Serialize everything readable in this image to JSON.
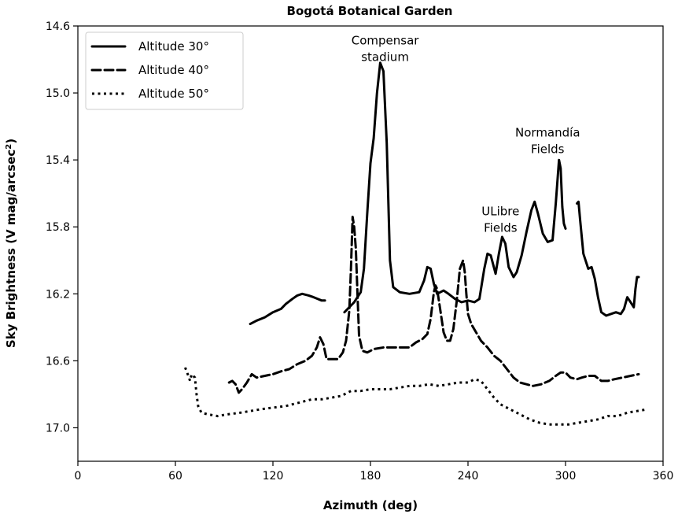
{
  "chart_data": {
    "type": "line",
    "title": "Bogotá Botanical Garden",
    "xlabel": "Azimuth (deg)",
    "ylabel_main": "Sky Brightness (V mag/arcsec",
    "ylabel_sup": "2",
    "ylabel_close": ")",
    "xlim": [
      0,
      360
    ],
    "ylim": [
      17.2,
      14.6
    ],
    "y_inverted": true,
    "x_ticks": [
      0,
      60,
      120,
      180,
      240,
      300,
      360
    ],
    "x_tick_labels": [
      "0",
      "60",
      "120",
      "180",
      "240",
      "300",
      "360"
    ],
    "y_ticks": [
      14.6,
      15.0,
      15.4,
      15.8,
      16.2,
      16.6,
      17.0
    ],
    "y_tick_labels": [
      "14.6",
      "15.0",
      "15.4",
      "15.8",
      "16.2",
      "16.6",
      "17.0"
    ],
    "grid": false,
    "legend": {
      "position": "top-left",
      "entries": [
        {
          "label": "Altitude 30°",
          "style": "solid"
        },
        {
          "label": "Altitude 40°",
          "style": "dashed"
        },
        {
          "label": "Altitude 50°",
          "style": "dotted"
        }
      ]
    },
    "annotations": [
      {
        "lines": [
          "Compensar",
          "stadium"
        ],
        "x": 189,
        "y": 14.71
      },
      {
        "lines": [
          "Normandía",
          "Fields"
        ],
        "x": 289,
        "y": 15.26
      },
      {
        "lines": [
          "ULibre",
          "Fields"
        ],
        "x": 260,
        "y": 15.73
      }
    ],
    "series": [
      {
        "name": "Altitude 30°",
        "style": "solid",
        "segments": [
          [
            [
              106,
              16.38
            ],
            [
              110,
              16.36
            ],
            [
              115,
              16.34
            ],
            [
              120,
              16.31
            ],
            [
              125,
              16.29
            ],
            [
              128,
              16.26
            ],
            [
              132,
              16.23
            ],
            [
              135,
              16.21
            ],
            [
              138,
              16.2
            ],
            [
              142,
              16.21
            ],
            [
              145,
              16.22
            ],
            [
              150,
              16.24
            ],
            [
              152,
              16.24
            ]
          ],
          [
            [
              164,
              16.31
            ],
            [
              167,
              16.28
            ],
            [
              170,
              16.25
            ],
            [
              174,
              16.19
            ],
            [
              176,
              16.05
            ],
            [
              178,
              15.72
            ],
            [
              180,
              15.42
            ],
            [
              182,
              15.27
            ],
            [
              184,
              15.0
            ],
            [
              186,
              14.82
            ],
            [
              188,
              14.87
            ],
            [
              190,
              15.3
            ],
            [
              192,
              16.0
            ],
            [
              194,
              16.16
            ],
            [
              198,
              16.19
            ],
            [
              204,
              16.2
            ],
            [
              210,
              16.19
            ],
            [
              213,
              16.12
            ],
            [
              215,
              16.04
            ],
            [
              217,
              16.05
            ],
            [
              219,
              16.14
            ],
            [
              221,
              16.2
            ],
            [
              223,
              16.19
            ],
            [
              225,
              16.18
            ],
            [
              228,
              16.2
            ],
            [
              232,
              16.23
            ],
            [
              236,
              16.25
            ],
            [
              240,
              16.24
            ],
            [
              244,
              16.25
            ],
            [
              247,
              16.23
            ],
            [
              250,
              16.05
            ],
            [
              252,
              15.96
            ],
            [
              254,
              15.97
            ],
            [
              257,
              16.08
            ],
            [
              259,
              15.96
            ],
            [
              261,
              15.86
            ],
            [
              263,
              15.9
            ],
            [
              265,
              16.04
            ],
            [
              268,
              16.1
            ],
            [
              270,
              16.07
            ],
            [
              273,
              15.97
            ],
            [
              276,
              15.83
            ],
            [
              279,
              15.7
            ],
            [
              281,
              15.65
            ],
            [
              283,
              15.72
            ],
            [
              286,
              15.84
            ],
            [
              289,
              15.89
            ],
            [
              292,
              15.88
            ],
            [
              294,
              15.66
            ],
            [
              296,
              15.4
            ],
            [
              297,
              15.45
            ],
            [
              298,
              15.68
            ],
            [
              299,
              15.78
            ],
            [
              300,
              15.81
            ]
          ],
          [
            [
              307,
              15.66
            ],
            [
              308,
              15.65
            ],
            [
              309,
              15.76
            ],
            [
              311,
              15.96
            ],
            [
              314,
              16.05
            ],
            [
              316,
              16.04
            ],
            [
              318,
              16.11
            ],
            [
              320,
              16.22
            ],
            [
              322,
              16.31
            ],
            [
              325,
              16.33
            ],
            [
              328,
              16.32
            ],
            [
              331,
              16.31
            ],
            [
              334,
              16.32
            ],
            [
              336,
              16.29
            ],
            [
              338,
              16.22
            ],
            [
              340,
              16.25
            ],
            [
              342,
              16.28
            ],
            [
              343,
              16.17
            ],
            [
              344,
              16.1
            ],
            [
              345,
              16.1
            ]
          ]
        ]
      },
      {
        "name": "Altitude 40°",
        "style": "dashed",
        "segments": [
          [
            [
              93,
              16.73
            ],
            [
              95,
              16.72
            ],
            [
              97,
              16.74
            ],
            [
              99,
              16.79
            ],
            [
              101,
              16.77
            ],
            [
              104,
              16.73
            ],
            [
              107,
              16.68
            ],
            [
              110,
              16.7
            ],
            [
              115,
              16.69
            ],
            [
              120,
              16.68
            ],
            [
              126,
              16.66
            ],
            [
              130,
              16.65
            ],
            [
              135,
              16.62
            ],
            [
              140,
              16.6
            ],
            [
              144,
              16.57
            ],
            [
              147,
              16.52
            ],
            [
              149,
              16.46
            ],
            [
              151,
              16.5
            ],
            [
              153,
              16.59
            ],
            [
              156,
              16.59
            ],
            [
              160,
              16.59
            ],
            [
              163,
              16.55
            ],
            [
              165,
              16.48
            ],
            [
              167,
              16.3
            ],
            [
              168,
              16.05
            ],
            [
              169,
              15.74
            ],
            [
              170,
              15.8
            ],
            [
              171,
              15.93
            ],
            [
              172,
              16.2
            ],
            [
              173,
              16.45
            ],
            [
              175,
              16.54
            ],
            [
              178,
              16.55
            ],
            [
              182,
              16.53
            ],
            [
              188,
              16.52
            ],
            [
              194,
              16.52
            ],
            [
              200,
              16.52
            ],
            [
              204,
              16.52
            ],
            [
              208,
              16.49
            ],
            [
              212,
              16.47
            ],
            [
              215,
              16.44
            ],
            [
              217,
              16.35
            ],
            [
              219,
              16.19
            ],
            [
              220,
              16.15
            ],
            [
              221,
              16.17
            ],
            [
              223,
              16.3
            ],
            [
              225,
              16.43
            ],
            [
              227,
              16.48
            ],
            [
              229,
              16.48
            ],
            [
              231,
              16.41
            ],
            [
              233,
              16.25
            ],
            [
              235,
              16.05
            ],
            [
              237,
              16.0
            ],
            [
              238,
              16.07
            ],
            [
              239,
              16.2
            ],
            [
              240,
              16.32
            ],
            [
              242,
              16.38
            ],
            [
              245,
              16.43
            ],
            [
              248,
              16.48
            ],
            [
              252,
              16.52
            ],
            [
              256,
              16.57
            ],
            [
              260,
              16.6
            ],
            [
              264,
              16.65
            ],
            [
              268,
              16.7
            ],
            [
              272,
              16.73
            ],
            [
              276,
              16.74
            ],
            [
              280,
              16.75
            ],
            [
              285,
              16.74
            ],
            [
              290,
              16.72
            ],
            [
              294,
              16.69
            ],
            [
              297,
              16.67
            ],
            [
              300,
              16.67
            ],
            [
              303,
              16.7
            ],
            [
              307,
              16.71
            ],
            [
              310,
              16.7
            ],
            [
              314,
              16.69
            ],
            [
              318,
              16.69
            ],
            [
              322,
              16.72
            ],
            [
              326,
              16.72
            ],
            [
              330,
              16.71
            ],
            [
              335,
              16.7
            ],
            [
              340,
              16.69
            ],
            [
              345,
              16.68
            ]
          ]
        ]
      },
      {
        "name": "Altitude 50°",
        "style": "dotted",
        "segments": [
          [
            [
              66,
              16.64
            ],
            [
              68,
              16.69
            ],
            [
              69,
              16.72
            ],
            [
              70,
              16.68
            ],
            [
              72,
              16.7
            ],
            [
              73,
              16.8
            ],
            [
              74,
              16.87
            ],
            [
              76,
              16.91
            ],
            [
              80,
              16.92
            ],
            [
              86,
              16.93
            ],
            [
              92,
              16.92
            ],
            [
              100,
              16.91
            ],
            [
              106,
              16.9
            ],
            [
              112,
              16.89
            ],
            [
              120,
              16.88
            ],
            [
              128,
              16.87
            ],
            [
              136,
              16.85
            ],
            [
              144,
              16.83
            ],
            [
              150,
              16.83
            ],
            [
              156,
              16.82
            ],
            [
              162,
              16.81
            ],
            [
              168,
              16.78
            ],
            [
              174,
              16.78
            ],
            [
              180,
              16.77
            ],
            [
              186,
              16.77
            ],
            [
              192,
              16.77
            ],
            [
              198,
              16.76
            ],
            [
              204,
              16.75
            ],
            [
              210,
              16.75
            ],
            [
              216,
              16.74
            ],
            [
              222,
              16.75
            ],
            [
              228,
              16.74
            ],
            [
              234,
              16.73
            ],
            [
              240,
              16.73
            ],
            [
              244,
              16.71
            ],
            [
              248,
              16.72
            ],
            [
              252,
              16.77
            ],
            [
              256,
              16.82
            ],
            [
              260,
              16.86
            ],
            [
              266,
              16.89
            ],
            [
              272,
              16.92
            ],
            [
              278,
              16.95
            ],
            [
              284,
              16.97
            ],
            [
              290,
              16.98
            ],
            [
              296,
              16.98
            ],
            [
              302,
              16.98
            ],
            [
              308,
              16.97
            ],
            [
              314,
              16.96
            ],
            [
              320,
              16.95
            ],
            [
              326,
              16.93
            ],
            [
              332,
              16.93
            ],
            [
              338,
              16.91
            ],
            [
              344,
              16.9
            ],
            [
              350,
              16.89
            ]
          ]
        ]
      }
    ]
  }
}
